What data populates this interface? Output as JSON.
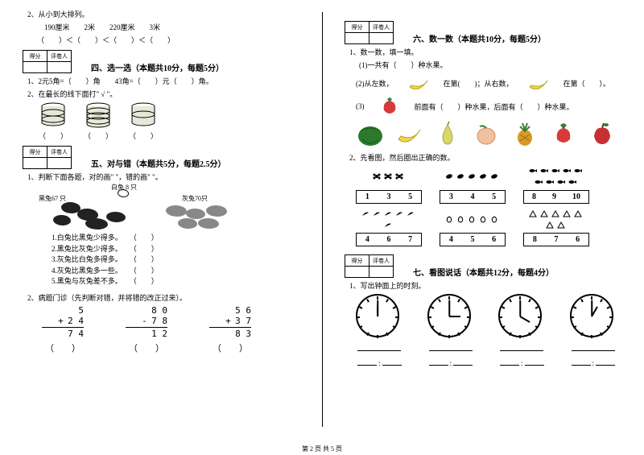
{
  "footer": "第 2 页 共 5 页",
  "left": {
    "q2_title": "2、从小到大排列。",
    "q2_items": "　190厘米　　2米　　220厘米　　3米",
    "q2_blanks": "（　　）＜（　　）＜（　　）＜（　　）",
    "score_header1": "得分",
    "score_header2": "评卷人",
    "sec4_title": "四、选一选（本题共10分，每题5分）",
    "sec4_q1": "1、2元5角=（　　）角　　43角=（　　）元（　　）角。",
    "sec4_q2": "2、在最长的线下面打\" √ \"。",
    "sec4_q2_blanks_a": "（　　）",
    "sec4_q2_blanks_b": "（　　）",
    "sec4_q2_blanks_c": "（　　）",
    "sec5_title": "五、对与错（本题共5分，每题2.5分）",
    "sec5_q1": "1、判断下面各题，对的画\"  \"，错的画\"  \"。",
    "rabbit_white": "白兔 8 只",
    "rabbit_black": "黑兔67 只",
    "rabbit_grey": "灰兔70只",
    "list5": [
      "1.白兔比黑兔少得多。　　（　　）",
      "2.黑兔比灰兔少得多。　　（　　）",
      "3.灰兔比白兔多得多。　　（　　）",
      "4.灰兔比黑兔多一些。　　（　　）",
      "5.黑兔与灰兔差不多。　　（　　）"
    ],
    "sec5_q2": "2、病题门诊（先判断对错，并将错的改正过来）。",
    "math": [
      {
        "a": "5",
        "op": "+",
        "b": "2 4",
        "r": "7 4"
      },
      {
        "a": "8 0",
        "op": "-",
        "b": "7 8",
        "r": "1 2"
      },
      {
        "a": "5 6",
        "op": "+",
        "b": "3 7",
        "r": "8 3"
      }
    ],
    "math_blank": "（　　）"
  },
  "right": {
    "score_header1": "得分",
    "score_header2": "评卷人",
    "sec6_title": "六、数一数（本题共10分，每题5分）",
    "sec6_q1": "1、数一数，填一填。",
    "sec6_q1_1": "(1)一共有（　　）种水果。",
    "sec6_q1_2a": "(2)从左数，",
    "sec6_q1_2b": "在第(　　)；从右数，",
    "sec6_q1_2c": "在第（　　）。",
    "sec6_q1_3a": "(3)",
    "sec6_q1_3b": "前面有（　　）种水果，后面有（　　）种水果。",
    "sec6_q2": "2、先看图，然后圈出正确的数。",
    "count_boxes": [
      [
        "1",
        "3",
        "5"
      ],
      [
        "3",
        "4",
        "5"
      ],
      [
        "8",
        "9",
        "10"
      ],
      [
        "4",
        "6",
        "7"
      ],
      [
        "4",
        "5",
        "6"
      ],
      [
        "8",
        "7",
        "6"
      ]
    ],
    "sec7_title": "七、看图说话（本题共12分，每题4分）",
    "sec7_q1": "1、写出钟面上的时刻。",
    "clocks": [
      {
        "hr": -90,
        "mn": -90
      },
      {
        "hr": 0,
        "mn": -90
      },
      {
        "hr": 30,
        "mn": -90
      },
      {
        "hr": -60,
        "mn": -90
      }
    ]
  },
  "colors": {
    "banana": "#f5d742",
    "strawberry": "#d83a3a",
    "watermelon": "#2a7a2a",
    "pear": "#d8d86a",
    "pine": "#d89a2a",
    "apple": "#c73030",
    "leaf": "#3a7a3a"
  }
}
